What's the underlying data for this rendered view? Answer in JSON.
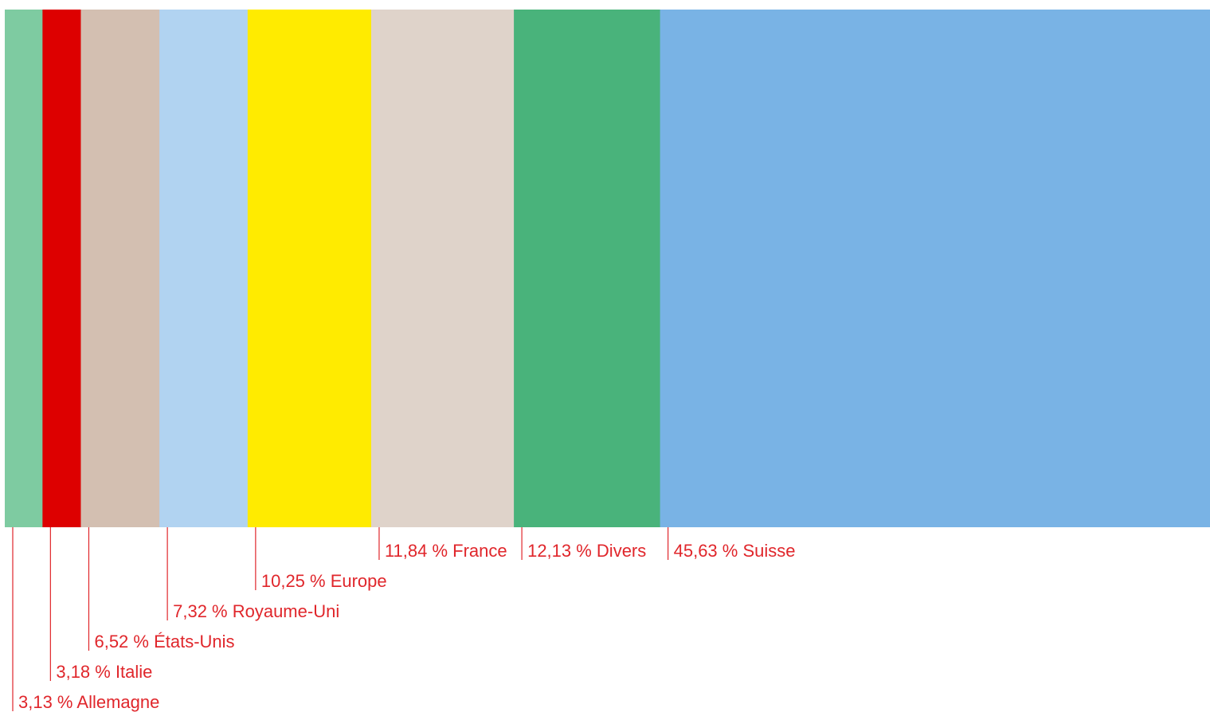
{
  "chart_data": {
    "type": "bar",
    "orientation": "stacked-horizontal",
    "unit": "%",
    "label_color": "#e0262b",
    "segments": [
      {
        "name": "Allemagne",
        "value": 3.13,
        "label": "3,13 % Allemagne",
        "color": "#7ecba1"
      },
      {
        "name": "Italie",
        "value": 3.18,
        "label": "3,18 % Italie",
        "color": "#dd0000"
      },
      {
        "name": "États-Unis",
        "value": 6.52,
        "label": "6,52 % États-Unis",
        "color": "#d3bfb1"
      },
      {
        "name": "Royaume-Uni",
        "value": 7.32,
        "label": "7,32 % Royaume-Uni",
        "color": "#b1d3f1"
      },
      {
        "name": "Europe",
        "value": 10.25,
        "label": "10,25 % Europe",
        "color": "#ffeb00"
      },
      {
        "name": "France",
        "value": 11.84,
        "label": "11,84 % France",
        "color": "#dfd3ca"
      },
      {
        "name": "Divers",
        "value": 12.13,
        "label": "12,13 % Divers",
        "color": "#49b37b"
      },
      {
        "name": "Suisse",
        "value": 45.63,
        "label": "45,63 % Suisse",
        "color": "#79b3e5"
      }
    ]
  }
}
